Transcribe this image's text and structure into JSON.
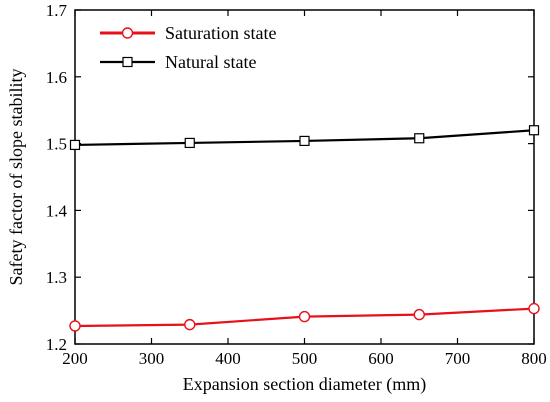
{
  "chart_data": {
    "type": "line",
    "title": "",
    "xlabel": "Expansion section diameter (mm)",
    "ylabel": "Safety factor of slope stability",
    "xlim": [
      200,
      800
    ],
    "ylim": [
      1.2,
      1.7
    ],
    "xticks": [
      200,
      300,
      400,
      500,
      600,
      700,
      800
    ],
    "yticks": [
      1.2,
      1.3,
      1.4,
      1.5,
      1.6,
      1.7
    ],
    "xtick_labels": [
      "200",
      "300",
      "400",
      "500",
      "600",
      "700",
      "800"
    ],
    "ytick_labels": [
      "1.2",
      "1.3",
      "1.4",
      "1.5",
      "1.6",
      "1.7"
    ],
    "grid": false,
    "legend_position": "top-left",
    "series": [
      {
        "name": "Saturation state",
        "color": "#e8101a",
        "marker": "circle",
        "x": [
          200,
          350,
          500,
          650,
          800
        ],
        "y": [
          1.227,
          1.229,
          1.241,
          1.244,
          1.253
        ]
      },
      {
        "name": "Natural state",
        "color": "#000000",
        "marker": "square",
        "x": [
          200,
          350,
          500,
          650,
          800
        ],
        "y": [
          1.498,
          1.501,
          1.504,
          1.508,
          1.52
        ]
      }
    ]
  }
}
